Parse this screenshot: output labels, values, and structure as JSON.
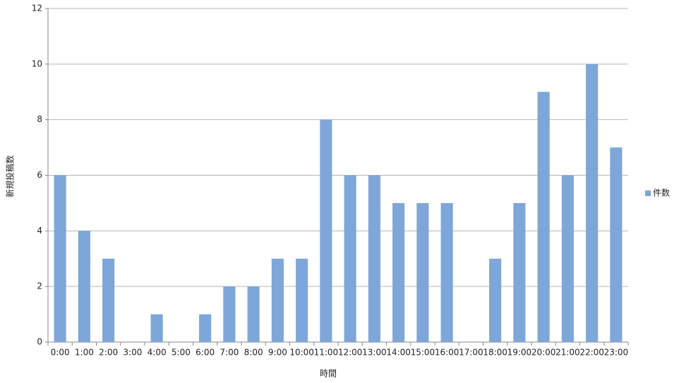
{
  "chart_data": {
    "type": "bar",
    "y_label": "新規投稿数",
    "x_label": "時間",
    "categories": [
      "0:00",
      "1:00",
      "2:00",
      "3:00",
      "4:00",
      "5:00",
      "6:00",
      "7:00",
      "8:00",
      "9:00",
      "10:00",
      "11:00",
      "12:00",
      "13:00",
      "14:00",
      "15:00",
      "16:00",
      "17:00",
      "18:00",
      "19:00",
      "20:00",
      "21:00",
      "22:00",
      "23:00"
    ],
    "series": [
      {
        "name": "件数",
        "color": "#7ea6d8",
        "values": [
          6,
          4,
          3,
          0,
          1,
          0,
          1,
          2,
          2,
          3,
          3,
          8,
          6,
          6,
          5,
          5,
          5,
          0,
          3,
          5,
          9,
          6,
          10,
          7
        ]
      }
    ],
    "ylim": [
      0,
      12
    ],
    "yticks": [
      0,
      2,
      4,
      6,
      8,
      10,
      12
    ],
    "grid": true,
    "legend": "right"
  }
}
